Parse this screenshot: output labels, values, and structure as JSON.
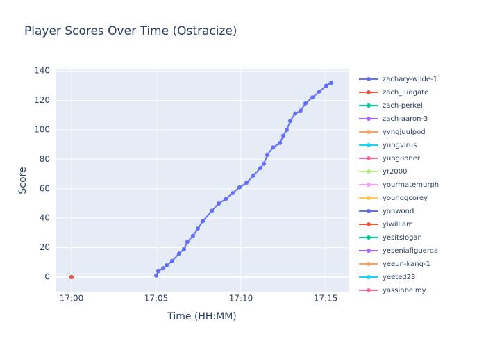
{
  "chart_data": {
    "type": "line",
    "title": "Player Scores Over Time (Ostracize)",
    "x_label": "Time (HH:MM)",
    "y_label": "Score",
    "xlim": [
      1019.06,
      1036.39
    ],
    "ylim": [
      -9.9,
      141
    ],
    "xticks": [
      {
        "value": 1020,
        "label": "17:00"
      },
      {
        "value": 1025,
        "label": "17:05"
      },
      {
        "value": 1030,
        "label": "17:10"
      },
      {
        "value": 1035,
        "label": "17:15"
      }
    ],
    "yticks": [
      0,
      20,
      40,
      60,
      80,
      100,
      120,
      140
    ],
    "grid": true,
    "series": [
      {
        "name": "zachary-wilde-1",
        "color": "#636efa",
        "x": [
          1025.0,
          1025.12,
          1025.41,
          1025.61,
          1025.94,
          1026.35,
          1026.64,
          1026.84,
          1027.17,
          1027.46,
          1027.75,
          1028.28,
          1028.69,
          1029.1,
          1029.51,
          1029.92,
          1030.33,
          1030.74,
          1031.15,
          1031.35,
          1031.56,
          1031.89,
          1032.3,
          1032.5,
          1032.7,
          1032.91,
          1033.2,
          1033.52,
          1033.81,
          1034.22,
          1034.63,
          1035.04,
          1035.33
        ],
        "values": [
          1,
          4,
          6,
          8,
          11,
          16,
          19,
          24,
          28,
          33,
          38,
          45,
          50,
          53,
          57,
          61,
          64,
          69,
          74,
          77,
          83,
          88,
          91,
          96,
          100,
          106,
          111,
          113,
          118,
          122,
          126,
          130,
          132
        ]
      },
      {
        "name": "zach_ludgate",
        "color": "#EF553B",
        "x": [
          1020
        ],
        "values": [
          0
        ]
      },
      {
        "name": "zach-perkel",
        "color": "#00cc96",
        "x": [
          1020
        ],
        "values": [
          0
        ]
      },
      {
        "name": "zach-aaron-3",
        "color": "#ab63fa",
        "x": [
          1020
        ],
        "values": [
          0
        ]
      },
      {
        "name": "yvngjuulpod",
        "color": "#FFA15A",
        "x": [
          1020
        ],
        "values": [
          0
        ]
      },
      {
        "name": "yungvirus",
        "color": "#19d3f3",
        "x": [
          1020
        ],
        "values": [
          0
        ]
      },
      {
        "name": "yung8oner",
        "color": "#FF6692",
        "x": [
          1020
        ],
        "values": [
          0
        ]
      },
      {
        "name": "yr2000",
        "color": "#B6E880",
        "x": [
          1020
        ],
        "values": [
          0
        ]
      },
      {
        "name": "yourmatemurph",
        "color": "#FF97FF",
        "x": [
          1020
        ],
        "values": [
          0
        ]
      },
      {
        "name": "younggcorey",
        "color": "#FECB52",
        "x": [
          1020
        ],
        "values": [
          0
        ]
      },
      {
        "name": "yonwond",
        "color": "#636efa",
        "x": [
          1020
        ],
        "values": [
          0
        ]
      },
      {
        "name": "yiwilliam",
        "color": "#EF553B",
        "x": [
          1020
        ],
        "values": [
          0
        ]
      },
      {
        "name": "yesitslogan",
        "color": "#00cc96",
        "x": [
          1020
        ],
        "values": [
          0
        ]
      },
      {
        "name": "yeseniafigueroa",
        "color": "#ab63fa",
        "x": [
          1020
        ],
        "values": [
          0
        ]
      },
      {
        "name": "yeeun-kang-1",
        "color": "#FFA15A",
        "x": [
          1020
        ],
        "values": [
          0
        ]
      },
      {
        "name": "yeeted23",
        "color": "#19d3f3",
        "x": [
          1020
        ],
        "values": [
          0
        ]
      },
      {
        "name": "yassinbelmy",
        "color": "#FF6692",
        "x": [
          1020
        ],
        "values": [
          0
        ]
      }
    ]
  }
}
